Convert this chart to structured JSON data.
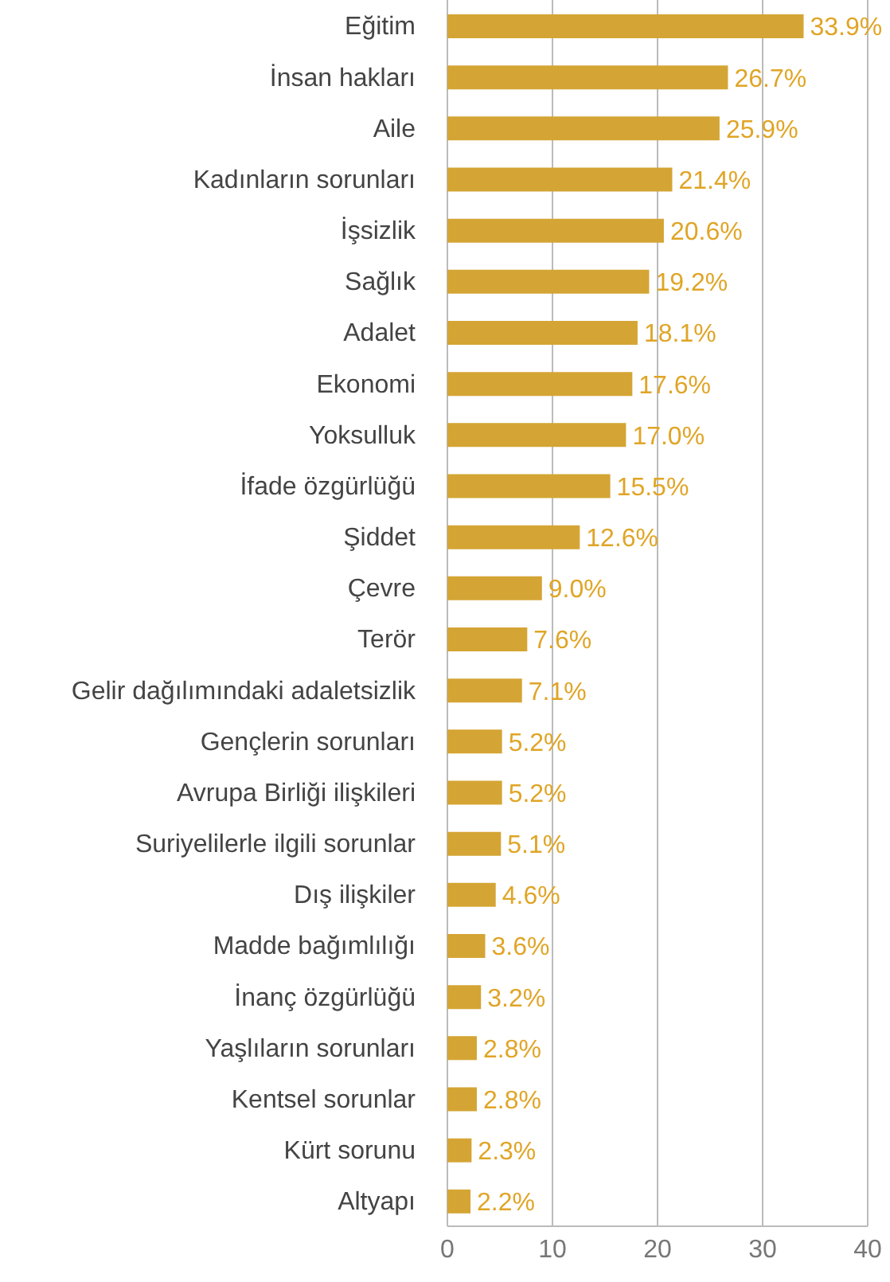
{
  "chart_data": {
    "type": "bar",
    "orientation": "horizontal",
    "categories": [
      "Eğitim",
      "İnsan hakları",
      "Aile",
      "Kadınların sorunları",
      "İşsizlik",
      "Sağlık",
      "Adalet",
      "Ekonomi",
      "Yoksulluk",
      "İfade özgürlüğü",
      "Şiddet",
      "Çevre",
      "Terör",
      "Gelir dağılımındaki adaletsizlik",
      "Gençlerin sorunları",
      "Avrupa Birliği ilişkileri",
      "Suriyelilerle ilgili sorunlar",
      "Dış ilişkiler",
      "Madde bağımlılığı",
      "İnanç özgürlüğü",
      "Yaşlıların sorunları",
      "Kentsel sorunlar",
      "Kürt sorunu",
      "Altyapı"
    ],
    "values": [
      33.9,
      26.7,
      25.9,
      21.4,
      20.6,
      19.2,
      18.1,
      17.6,
      17.0,
      15.5,
      12.6,
      9.0,
      7.6,
      7.1,
      5.2,
      5.2,
      5.1,
      4.6,
      3.6,
      3.2,
      2.8,
      2.8,
      2.3,
      2.2
    ],
    "value_labels": [
      "33.9%",
      "26.7%",
      "25.9%",
      "21.4%",
      "20.6%",
      "19.2%",
      "18.1%",
      "17.6%",
      "17.0%",
      "15.5%",
      "12.6%",
      "9.0%",
      "7.6%",
      "7.1%",
      "5.2%",
      "5.2%",
      "5.1%",
      "4.6%",
      "3.6%",
      "3.2%",
      "2.8%",
      "2.8%",
      "2.3%",
      "2.2%"
    ],
    "color": "#d4a534",
    "xlim": [
      0,
      40
    ],
    "xticks": [
      0,
      10,
      20,
      30,
      40
    ],
    "grid": "x"
  }
}
